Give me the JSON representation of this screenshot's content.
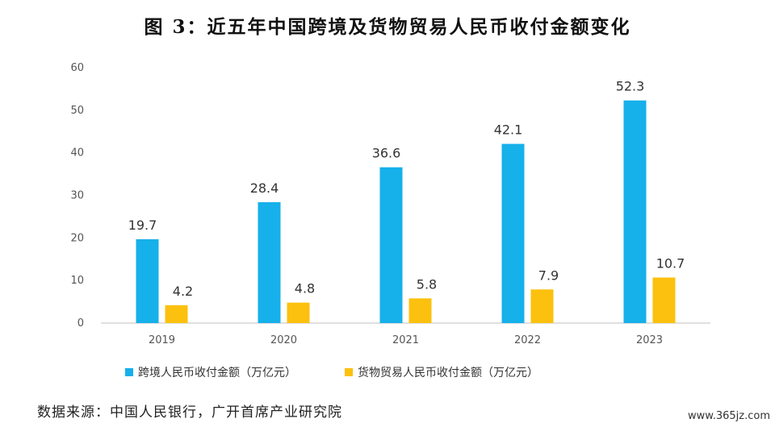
{
  "title": "图 3：近五年中国跨境及货物贸易人民币收付金额变化",
  "source": "数据来源：中国人民银行，广开首席产业研究院",
  "watermark": "www.365jz.com",
  "colors": {
    "series1": "#16b0ea",
    "series2": "#fcc10e"
  },
  "chart_data": {
    "type": "bar",
    "title": "图 3：近五年中国跨境及货物贸易人民币收付金额变化",
    "categories": [
      "2019",
      "2020",
      "2021",
      "2022",
      "2023"
    ],
    "series": [
      {
        "name": "跨境人民币收付金额（万亿元）",
        "values": [
          19.7,
          28.4,
          36.6,
          42.1,
          52.3
        ]
      },
      {
        "name": "货物贸易人民币收付金额（万亿元）",
        "values": [
          4.2,
          4.8,
          5.8,
          7.9,
          10.7
        ]
      }
    ],
    "ylim": [
      0,
      60
    ],
    "yticks": [
      0,
      10,
      20,
      30,
      40,
      50,
      60
    ],
    "xlabel": "",
    "ylabel": "",
    "grid": false,
    "legend_position": "bottom"
  }
}
